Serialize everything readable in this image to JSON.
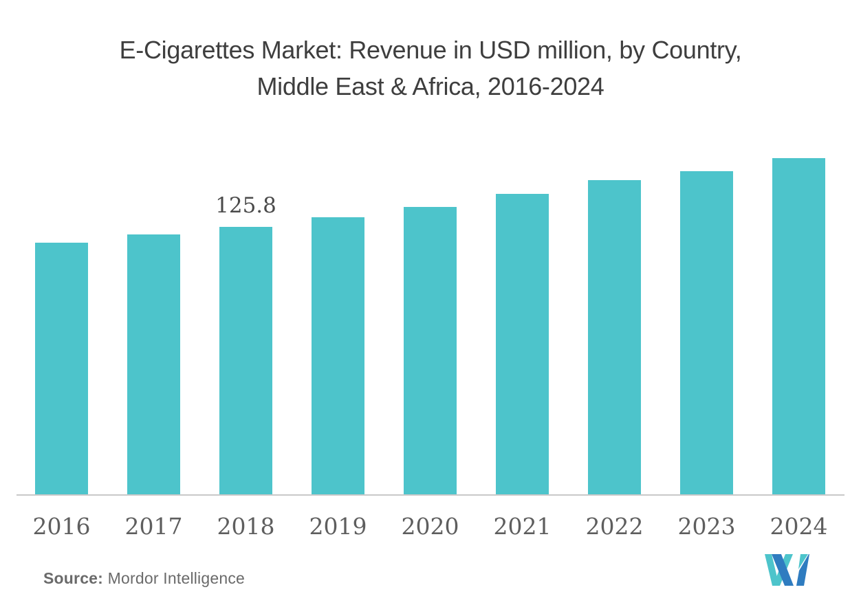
{
  "title": {
    "line1": "E-Cigarettes Market: Revenue in USD million, by Country,",
    "line2": "Middle East & Africa, 2016-2024"
  },
  "chart_data": {
    "type": "bar",
    "title": "E-Cigarettes Market: Revenue in USD million, by Country, Middle East & Africa, 2016-2024",
    "categories": [
      "2016",
      "2017",
      "2018",
      "2019",
      "2020",
      "2021",
      "2022",
      "2023",
      "2024"
    ],
    "values": [
      118.4,
      122.3,
      125.8,
      130.4,
      135.3,
      141.3,
      147.7,
      151.9,
      158.0
    ],
    "labeled_points": [
      {
        "category": "2018",
        "label": "125.8"
      }
    ],
    "xlabel": "",
    "ylabel": "",
    "ylim": [
      0,
      170
    ],
    "grid": false,
    "legend": false,
    "bar_color": "#4DC4CB"
  },
  "source": {
    "label": "Source:",
    "name": " Mordor Intelligence"
  },
  "brand": {
    "teal": "#4DC4CB",
    "blue": "#2F7CC0"
  },
  "colors": {
    "background": "#FFFFFF",
    "title_text": "#3E3E3E",
    "axis_text": "#5E5E5E",
    "data_label": "#4A4A4A",
    "axis_line": "#C9C9C9",
    "source_text": "#6A6A6A"
  }
}
